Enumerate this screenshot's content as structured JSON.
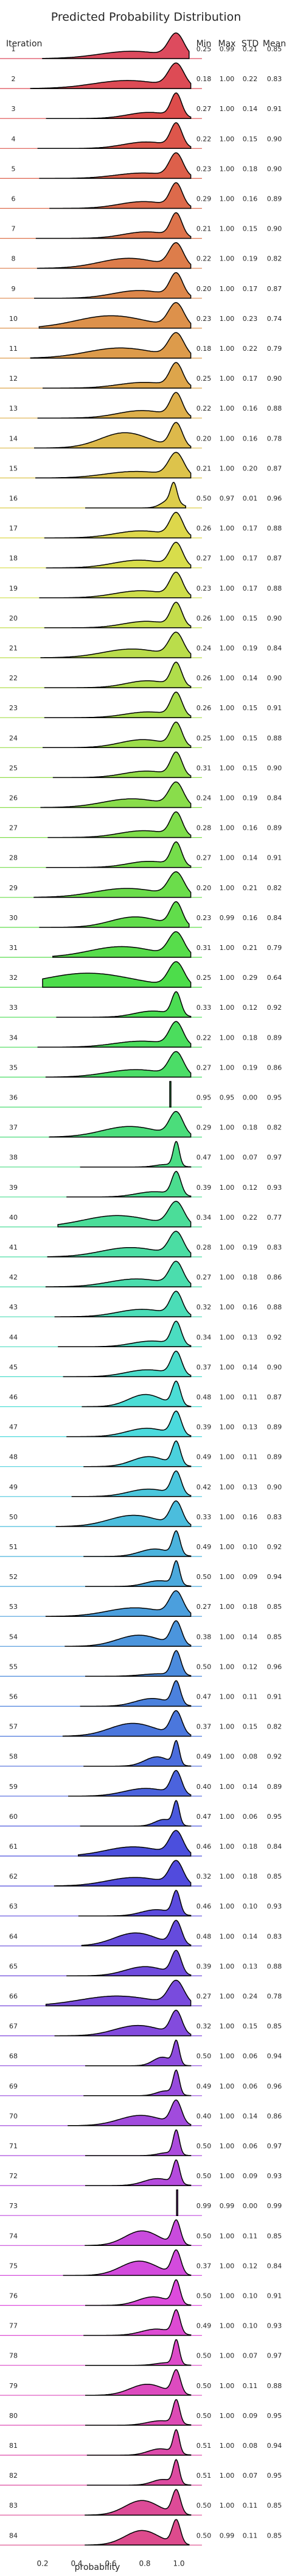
{
  "chart_data": {
    "type": "area",
    "title": "Predicted Probability Distribution",
    "row_header": "Iteration",
    "stat_headers": [
      "Min",
      "Max",
      "STD",
      "Mean"
    ],
    "xlabel": "probability",
    "xticks": [
      "0.2",
      "0.4",
      "0.6",
      "0.8",
      "1.0"
    ],
    "xlim": [
      0.1,
      1.1
    ],
    "rows": [
      {
        "iteration": "1",
        "min": "0.25",
        "max": "0.99",
        "std": "0.21",
        "mean": "0.85"
      },
      {
        "iteration": "2",
        "min": "0.18",
        "max": "1.00",
        "std": "0.22",
        "mean": "0.83"
      },
      {
        "iteration": "3",
        "min": "0.27",
        "max": "1.00",
        "std": "0.14",
        "mean": "0.91"
      },
      {
        "iteration": "4",
        "min": "0.22",
        "max": "1.00",
        "std": "0.15",
        "mean": "0.90"
      },
      {
        "iteration": "5",
        "min": "0.23",
        "max": "1.00",
        "std": "0.18",
        "mean": "0.90"
      },
      {
        "iteration": "6",
        "min": "0.29",
        "max": "1.00",
        "std": "0.16",
        "mean": "0.89"
      },
      {
        "iteration": "7",
        "min": "0.21",
        "max": "1.00",
        "std": "0.15",
        "mean": "0.90"
      },
      {
        "iteration": "8",
        "min": "0.22",
        "max": "1.00",
        "std": "0.19",
        "mean": "0.82"
      },
      {
        "iteration": "9",
        "min": "0.20",
        "max": "1.00",
        "std": "0.17",
        "mean": "0.87"
      },
      {
        "iteration": "10",
        "min": "0.23",
        "max": "1.00",
        "std": "0.23",
        "mean": "0.74"
      },
      {
        "iteration": "11",
        "min": "0.18",
        "max": "1.00",
        "std": "0.22",
        "mean": "0.79"
      },
      {
        "iteration": "12",
        "min": "0.25",
        "max": "1.00",
        "std": "0.17",
        "mean": "0.90"
      },
      {
        "iteration": "13",
        "min": "0.22",
        "max": "1.00",
        "std": "0.16",
        "mean": "0.88"
      },
      {
        "iteration": "14",
        "min": "0.20",
        "max": "1.00",
        "std": "0.16",
        "mean": "0.78"
      },
      {
        "iteration": "15",
        "min": "0.21",
        "max": "1.00",
        "std": "0.20",
        "mean": "0.87"
      },
      {
        "iteration": "16",
        "min": "0.50",
        "max": "0.97",
        "std": "0.01",
        "mean": "0.96"
      },
      {
        "iteration": "17",
        "min": "0.26",
        "max": "1.00",
        "std": "0.17",
        "mean": "0.88"
      },
      {
        "iteration": "18",
        "min": "0.27",
        "max": "1.00",
        "std": "0.17",
        "mean": "0.87"
      },
      {
        "iteration": "19",
        "min": "0.23",
        "max": "1.00",
        "std": "0.17",
        "mean": "0.88"
      },
      {
        "iteration": "20",
        "min": "0.26",
        "max": "1.00",
        "std": "0.15",
        "mean": "0.90"
      },
      {
        "iteration": "21",
        "min": "0.24",
        "max": "1.00",
        "std": "0.19",
        "mean": "0.84"
      },
      {
        "iteration": "22",
        "min": "0.26",
        "max": "1.00",
        "std": "0.14",
        "mean": "0.90"
      },
      {
        "iteration": "23",
        "min": "0.26",
        "max": "1.00",
        "std": "0.15",
        "mean": "0.91"
      },
      {
        "iteration": "24",
        "min": "0.25",
        "max": "1.00",
        "std": "0.15",
        "mean": "0.88"
      },
      {
        "iteration": "25",
        "min": "0.31",
        "max": "1.00",
        "std": "0.15",
        "mean": "0.90"
      },
      {
        "iteration": "26",
        "min": "0.24",
        "max": "1.00",
        "std": "0.19",
        "mean": "0.84"
      },
      {
        "iteration": "27",
        "min": "0.28",
        "max": "1.00",
        "std": "0.16",
        "mean": "0.89"
      },
      {
        "iteration": "28",
        "min": "0.27",
        "max": "1.00",
        "std": "0.14",
        "mean": "0.91"
      },
      {
        "iteration": "29",
        "min": "0.20",
        "max": "1.00",
        "std": "0.21",
        "mean": "0.82"
      },
      {
        "iteration": "30",
        "min": "0.23",
        "max": "0.99",
        "std": "0.16",
        "mean": "0.84"
      },
      {
        "iteration": "31",
        "min": "0.31",
        "max": "1.00",
        "std": "0.21",
        "mean": "0.79"
      },
      {
        "iteration": "32",
        "min": "0.25",
        "max": "1.00",
        "std": "0.29",
        "mean": "0.64"
      },
      {
        "iteration": "33",
        "min": "0.33",
        "max": "1.00",
        "std": "0.12",
        "mean": "0.92"
      },
      {
        "iteration": "34",
        "min": "0.22",
        "max": "1.00",
        "std": "0.18",
        "mean": "0.89"
      },
      {
        "iteration": "35",
        "min": "0.27",
        "max": "1.00",
        "std": "0.19",
        "mean": "0.86"
      },
      {
        "iteration": "36",
        "min": "0.95",
        "max": "0.95",
        "std": "0.00",
        "mean": "0.95"
      },
      {
        "iteration": "37",
        "min": "0.29",
        "max": "1.00",
        "std": "0.18",
        "mean": "0.82"
      },
      {
        "iteration": "38",
        "min": "0.47",
        "max": "1.00",
        "std": "0.07",
        "mean": "0.97"
      },
      {
        "iteration": "39",
        "min": "0.39",
        "max": "1.00",
        "std": "0.12",
        "mean": "0.93"
      },
      {
        "iteration": "40",
        "min": "0.34",
        "max": "1.00",
        "std": "0.22",
        "mean": "0.77"
      },
      {
        "iteration": "41",
        "min": "0.28",
        "max": "1.00",
        "std": "0.19",
        "mean": "0.83"
      },
      {
        "iteration": "42",
        "min": "0.27",
        "max": "1.00",
        "std": "0.18",
        "mean": "0.86"
      },
      {
        "iteration": "43",
        "min": "0.32",
        "max": "1.00",
        "std": "0.16",
        "mean": "0.88"
      },
      {
        "iteration": "44",
        "min": "0.34",
        "max": "1.00",
        "std": "0.13",
        "mean": "0.92"
      },
      {
        "iteration": "45",
        "min": "0.37",
        "max": "1.00",
        "std": "0.14",
        "mean": "0.90"
      },
      {
        "iteration": "46",
        "min": "0.48",
        "max": "1.00",
        "std": "0.11",
        "mean": "0.87"
      },
      {
        "iteration": "47",
        "min": "0.39",
        "max": "1.00",
        "std": "0.13",
        "mean": "0.89"
      },
      {
        "iteration": "48",
        "min": "0.49",
        "max": "1.00",
        "std": "0.11",
        "mean": "0.89"
      },
      {
        "iteration": "49",
        "min": "0.42",
        "max": "1.00",
        "std": "0.13",
        "mean": "0.90"
      },
      {
        "iteration": "50",
        "min": "0.33",
        "max": "1.00",
        "std": "0.16",
        "mean": "0.83"
      },
      {
        "iteration": "51",
        "min": "0.49",
        "max": "1.00",
        "std": "0.10",
        "mean": "0.92"
      },
      {
        "iteration": "52",
        "min": "0.50",
        "max": "1.00",
        "std": "0.09",
        "mean": "0.94"
      },
      {
        "iteration": "53",
        "min": "0.27",
        "max": "1.00",
        "std": "0.18",
        "mean": "0.85"
      },
      {
        "iteration": "54",
        "min": "0.38",
        "max": "1.00",
        "std": "0.14",
        "mean": "0.85"
      },
      {
        "iteration": "55",
        "min": "0.50",
        "max": "1.00",
        "std": "0.12",
        "mean": "0.96"
      },
      {
        "iteration": "56",
        "min": "0.47",
        "max": "1.00",
        "std": "0.11",
        "mean": "0.91"
      },
      {
        "iteration": "57",
        "min": "0.37",
        "max": "1.00",
        "std": "0.15",
        "mean": "0.82"
      },
      {
        "iteration": "58",
        "min": "0.49",
        "max": "1.00",
        "std": "0.08",
        "mean": "0.92"
      },
      {
        "iteration": "59",
        "min": "0.40",
        "max": "1.00",
        "std": "0.14",
        "mean": "0.89"
      },
      {
        "iteration": "60",
        "min": "0.47",
        "max": "1.00",
        "std": "0.06",
        "mean": "0.95"
      },
      {
        "iteration": "61",
        "min": "0.46",
        "max": "1.00",
        "std": "0.18",
        "mean": "0.84"
      },
      {
        "iteration": "62",
        "min": "0.32",
        "max": "1.00",
        "std": "0.18",
        "mean": "0.85"
      },
      {
        "iteration": "63",
        "min": "0.46",
        "max": "1.00",
        "std": "0.10",
        "mean": "0.93"
      },
      {
        "iteration": "64",
        "min": "0.48",
        "max": "1.00",
        "std": "0.14",
        "mean": "0.83"
      },
      {
        "iteration": "65",
        "min": "0.39",
        "max": "1.00",
        "std": "0.13",
        "mean": "0.88"
      },
      {
        "iteration": "66",
        "min": "0.27",
        "max": "1.00",
        "std": "0.24",
        "mean": "0.78"
      },
      {
        "iteration": "67",
        "min": "0.32",
        "max": "1.00",
        "std": "0.15",
        "mean": "0.85"
      },
      {
        "iteration": "68",
        "min": "0.50",
        "max": "1.00",
        "std": "0.06",
        "mean": "0.94"
      },
      {
        "iteration": "69",
        "min": "0.49",
        "max": "1.00",
        "std": "0.06",
        "mean": "0.96"
      },
      {
        "iteration": "70",
        "min": "0.40",
        "max": "1.00",
        "std": "0.14",
        "mean": "0.86"
      },
      {
        "iteration": "71",
        "min": "0.50",
        "max": "1.00",
        "std": "0.06",
        "mean": "0.97"
      },
      {
        "iteration": "72",
        "min": "0.50",
        "max": "1.00",
        "std": "0.09",
        "mean": "0.93"
      },
      {
        "iteration": "73",
        "min": "0.99",
        "max": "0.99",
        "std": "0.00",
        "mean": "0.99"
      },
      {
        "iteration": "74",
        "min": "0.50",
        "max": "1.00",
        "std": "0.11",
        "mean": "0.85"
      },
      {
        "iteration": "75",
        "min": "0.37",
        "max": "1.00",
        "std": "0.12",
        "mean": "0.84"
      },
      {
        "iteration": "76",
        "min": "0.50",
        "max": "1.00",
        "std": "0.10",
        "mean": "0.91"
      },
      {
        "iteration": "77",
        "min": "0.49",
        "max": "1.00",
        "std": "0.10",
        "mean": "0.93"
      },
      {
        "iteration": "78",
        "min": "0.50",
        "max": "1.00",
        "std": "0.07",
        "mean": "0.97"
      },
      {
        "iteration": "79",
        "min": "0.50",
        "max": "1.00",
        "std": "0.11",
        "mean": "0.88"
      },
      {
        "iteration": "80",
        "min": "0.50",
        "max": "1.00",
        "std": "0.09",
        "mean": "0.95"
      },
      {
        "iteration": "81",
        "min": "0.51",
        "max": "1.00",
        "std": "0.08",
        "mean": "0.94"
      },
      {
        "iteration": "82",
        "min": "0.51",
        "max": "1.00",
        "std": "0.07",
        "mean": "0.95"
      },
      {
        "iteration": "83",
        "min": "0.50",
        "max": "1.00",
        "std": "0.11",
        "mean": "0.85"
      },
      {
        "iteration": "84",
        "min": "0.50",
        "max": "0.99",
        "std": "0.11",
        "mean": "0.85"
      }
    ]
  }
}
